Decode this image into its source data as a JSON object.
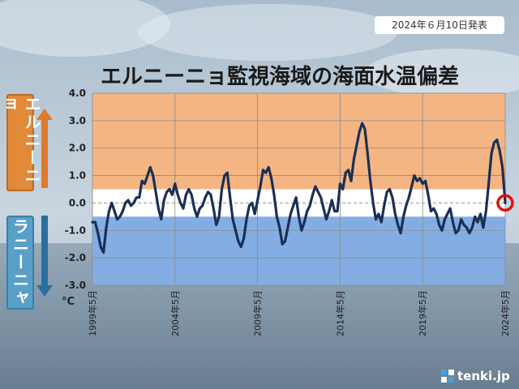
{
  "header": {
    "date_label": "2024年６月10日発表",
    "title": "エルニーニョ監視海域の海面水温偏差"
  },
  "side_labels": {
    "el_nino": "エルニーニョ",
    "la_nina": "ラニーニャ"
  },
  "logo": {
    "text": "tenki.jp"
  },
  "colors": {
    "el_nino_zone": "#f4b583",
    "neutral_zone": "#ffffff",
    "la_nina_zone": "#84aee3",
    "line": "#1b2f55",
    "marker": "#e01010",
    "el_nino_arrow": "#e07a2a",
    "la_nina_arrow": "#2a6fa0"
  },
  "chart_data": {
    "type": "line",
    "title": "エルニーニョ監視海域の海面水温偏差",
    "xlabel": "",
    "ylabel": "°C",
    "ylim": [
      -3.0,
      4.0
    ],
    "yticks": [
      "4.0",
      "3.0",
      "2.0",
      "1.0",
      "0.0",
      "-1.0",
      "-2.0",
      "-3.0"
    ],
    "ytick_values": [
      4,
      3,
      2,
      1,
      0,
      -1,
      -2,
      -3
    ],
    "xlim": [
      1999.333,
      2024.333
    ],
    "xticks": [
      "1999年5月",
      "2004年5月",
      "2009年5月",
      "2014年5月",
      "2019年5月",
      "2024年5月"
    ],
    "xtick_values": [
      1999.333,
      2004.333,
      2009.333,
      2014.333,
      2019.333,
      2024.333
    ],
    "zones": {
      "el_nino_threshold": 0.5,
      "la_nina_threshold": -0.5
    },
    "grid": true,
    "unit": "°C",
    "highlight": {
      "x": 2024.333,
      "y": 0.0
    },
    "x": [
      1999.333,
      1999.5,
      1999.667,
      1999.833,
      2000.0,
      2000.167,
      2000.333,
      2000.5,
      2000.667,
      2000.833,
      2001.0,
      2001.167,
      2001.333,
      2001.5,
      2001.667,
      2001.833,
      2002.0,
      2002.167,
      2002.333,
      2002.5,
      2002.667,
      2002.833,
      2003.0,
      2003.167,
      2003.333,
      2003.5,
      2003.667,
      2003.833,
      2004.0,
      2004.167,
      2004.333,
      2004.5,
      2004.667,
      2004.833,
      2005.0,
      2005.167,
      2005.333,
      2005.5,
      2005.667,
      2005.833,
      2006.0,
      2006.167,
      2006.333,
      2006.5,
      2006.667,
      2006.833,
      2007.0,
      2007.167,
      2007.333,
      2007.5,
      2007.667,
      2007.833,
      2008.0,
      2008.167,
      2008.333,
      2008.5,
      2008.667,
      2008.833,
      2009.0,
      2009.167,
      2009.333,
      2009.5,
      2009.667,
      2009.833,
      2010.0,
      2010.167,
      2010.333,
      2010.5,
      2010.667,
      2010.833,
      2011.0,
      2011.167,
      2011.333,
      2011.5,
      2011.667,
      2011.833,
      2012.0,
      2012.167,
      2012.333,
      2012.5,
      2012.667,
      2012.833,
      2013.0,
      2013.167,
      2013.333,
      2013.5,
      2013.667,
      2013.833,
      2014.0,
      2014.167,
      2014.333,
      2014.5,
      2014.667,
      2014.833,
      2015.0,
      2015.167,
      2015.333,
      2015.5,
      2015.667,
      2015.833,
      2016.0,
      2016.167,
      2016.333,
      2016.5,
      2016.667,
      2016.833,
      2017.0,
      2017.167,
      2017.333,
      2017.5,
      2017.667,
      2017.833,
      2018.0,
      2018.167,
      2018.333,
      2018.5,
      2018.667,
      2018.833,
      2019.0,
      2019.167,
      2019.333,
      2019.5,
      2019.667,
      2019.833,
      2020.0,
      2020.167,
      2020.333,
      2020.5,
      2020.667,
      2020.833,
      2021.0,
      2021.167,
      2021.333,
      2021.5,
      2021.667,
      2021.833,
      2022.0,
      2022.167,
      2022.333,
      2022.5,
      2022.667,
      2022.833,
      2023.0,
      2023.167,
      2023.333,
      2023.5,
      2023.667,
      2023.833,
      2024.0,
      2024.167,
      2024.333
    ],
    "y": [
      -0.7,
      -0.7,
      -1.1,
      -1.6,
      -1.8,
      -0.9,
      -0.3,
      0.0,
      -0.3,
      -0.6,
      -0.5,
      -0.3,
      0.0,
      0.1,
      -0.1,
      0.0,
      0.2,
      0.2,
      0.8,
      0.7,
      1.0,
      1.3,
      1.0,
      0.4,
      -0.2,
      -0.6,
      0.1,
      0.4,
      0.5,
      0.3,
      0.7,
      0.3,
      0.0,
      -0.2,
      0.3,
      0.5,
      0.3,
      -0.2,
      -0.5,
      -0.2,
      -0.1,
      0.2,
      0.4,
      0.3,
      -0.2,
      -0.8,
      -0.5,
      0.5,
      1.0,
      1.1,
      0.2,
      -0.6,
      -1.0,
      -1.4,
      -1.6,
      -1.3,
      -0.6,
      -0.1,
      0.0,
      -0.4,
      0.1,
      0.6,
      1.2,
      1.1,
      1.3,
      0.9,
      0.3,
      -0.5,
      -0.9,
      -1.5,
      -1.4,
      -0.9,
      -0.4,
      -0.1,
      0.2,
      -0.5,
      -1.0,
      -0.7,
      -0.3,
      -0.1,
      0.3,
      0.6,
      0.4,
      0.2,
      -0.2,
      -0.6,
      -0.3,
      0.1,
      -0.3,
      -0.3,
      0.7,
      0.5,
      1.1,
      1.2,
      0.8,
      1.6,
      2.1,
      2.6,
      2.9,
      2.7,
      1.8,
      0.8,
      0.0,
      -0.6,
      -0.4,
      -0.7,
      -0.1,
      0.4,
      0.5,
      0.2,
      -0.4,
      -0.8,
      -1.1,
      -0.5,
      -0.1,
      0.2,
      0.6,
      1.0,
      0.8,
      0.9,
      0.7,
      0.8,
      0.3,
      -0.3,
      -0.2,
      -0.4,
      -0.8,
      -1.0,
      -0.6,
      -0.4,
      -0.2,
      -0.7,
      -1.1,
      -1.0,
      -0.6,
      -0.8,
      -0.9,
      -1.1,
      -0.9,
      -0.5,
      -0.7,
      -0.4,
      -0.9,
      -0.3,
      0.7,
      1.8,
      2.2,
      2.3,
      1.9,
      1.3,
      0.0
    ]
  }
}
